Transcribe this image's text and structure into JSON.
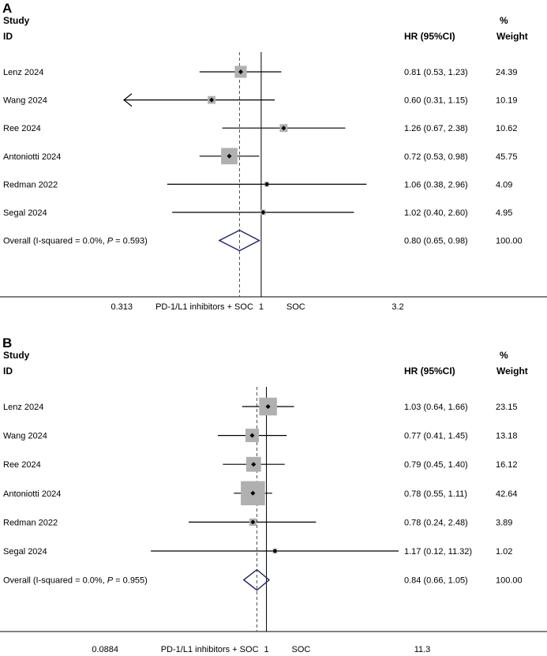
{
  "chart_data": [
    {
      "type": "forest",
      "panel_label": "A",
      "header": {
        "study": "Study",
        "id": "ID",
        "hr": "HR (95%CI)",
        "pct": "%",
        "weight": "Weight"
      },
      "studies": [
        {
          "name": "Lenz 2024",
          "hr": 0.81,
          "lo": 0.53,
          "hi": 1.23,
          "weight": 24.39,
          "hr_text": "0.81 (0.53, 1.23)",
          "weight_text": "24.39"
        },
        {
          "name": "Wang 2024",
          "hr": 0.6,
          "lo": 0.31,
          "hi": 1.15,
          "weight": 10.19,
          "hr_text": "0.60 (0.31, 1.15)",
          "weight_text": "10.19"
        },
        {
          "name": "Ree 2024",
          "hr": 1.26,
          "lo": 0.67,
          "hi": 2.38,
          "weight": 10.62,
          "hr_text": "1.26 (0.67, 2.38)",
          "weight_text": "10.62"
        },
        {
          "name": "Antoniotti 2024",
          "hr": 0.72,
          "lo": 0.53,
          "hi": 0.98,
          "weight": 45.75,
          "hr_text": "0.72 (0.53, 0.98)",
          "weight_text": "45.75"
        },
        {
          "name": "Redman 2022",
          "hr": 1.06,
          "lo": 0.38,
          "hi": 2.96,
          "weight": 4.09,
          "hr_text": "1.06 (0.38, 2.96)",
          "weight_text": "4.09"
        },
        {
          "name": "Segal 2024",
          "hr": 1.02,
          "lo": 0.4,
          "hi": 2.6,
          "weight": 4.95,
          "hr_text": "1.02 (0.40, 2.60)",
          "weight_text": "4.95"
        }
      ],
      "overall": {
        "label_prefix": "Overall  (I-squared = 0.0%, ",
        "p_symbol": "P",
        "label_suffix": " = 0.593)",
        "hr": 0.8,
        "lo": 0.65,
        "hi": 0.98,
        "hr_text": "0.80 (0.65, 0.98)",
        "weight_text": "100.00"
      },
      "axis": {
        "xmin": 0.313,
        "xmax": 3.2,
        "scale": "log",
        "tick_min_label": "0.313",
        "tick_max_label": "3.2",
        "tick_one_label": "1",
        "left_label": "PD-1/L1 inhibitors + SOC",
        "right_label": "SOC",
        "arrow_on_truncated": true
      }
    },
    {
      "type": "forest",
      "panel_label": "B",
      "header": {
        "study": "Study",
        "id": "ID",
        "hr": "HR (95%CI)",
        "pct": "%",
        "weight": "Weight"
      },
      "studies": [
        {
          "name": "Lenz 2024",
          "hr": 1.03,
          "lo": 0.64,
          "hi": 1.66,
          "weight": 23.15,
          "hr_text": "1.03 (0.64, 1.66)",
          "weight_text": "23.15"
        },
        {
          "name": "Wang 2024",
          "hr": 0.77,
          "lo": 0.41,
          "hi": 1.45,
          "weight": 13.18,
          "hr_text": "0.77 (0.41, 1.45)",
          "weight_text": "13.18"
        },
        {
          "name": "Ree 2024",
          "hr": 0.79,
          "lo": 0.45,
          "hi": 1.4,
          "weight": 16.12,
          "hr_text": "0.79 (0.45, 1.40)",
          "weight_text": "16.12"
        },
        {
          "name": "Antoniotti 2024",
          "hr": 0.78,
          "lo": 0.55,
          "hi": 1.11,
          "weight": 42.64,
          "hr_text": "0.78 (0.55, 1.11)",
          "weight_text": "42.64"
        },
        {
          "name": "Redman 2022",
          "hr": 0.78,
          "lo": 0.24,
          "hi": 2.48,
          "weight": 3.89,
          "hr_text": "0.78 (0.24, 2.48)",
          "weight_text": "3.89"
        },
        {
          "name": "Segal 2024",
          "hr": 1.17,
          "lo": 0.12,
          "hi": 11.32,
          "weight": 1.02,
          "hr_text": "1.17 (0.12, 11.32)",
          "weight_text": "1.02"
        }
      ],
      "overall": {
        "label_prefix": "Overall  (I-squared = 0.0%, ",
        "p_symbol": "P",
        "label_suffix": " = 0.955)",
        "hr": 0.84,
        "lo": 0.66,
        "hi": 1.05,
        "hr_text": "0.84 (0.66, 1.05)",
        "weight_text": "100.00"
      },
      "axis": {
        "xmin": 0.0884,
        "xmax": 11.3,
        "scale": "log",
        "tick_min_label": "0.0884",
        "tick_max_label": "11.3",
        "tick_one_label": "1",
        "left_label": "PD-1/L1 inhibitors + SOC",
        "right_label": "SOC",
        "arrow_on_truncated": false
      }
    }
  ],
  "colors": {
    "line": "#000000",
    "box": "#b0b0b0",
    "diamond": "#1f1f6e",
    "ref_dashed": "#9c3030",
    "text": "#000000"
  }
}
